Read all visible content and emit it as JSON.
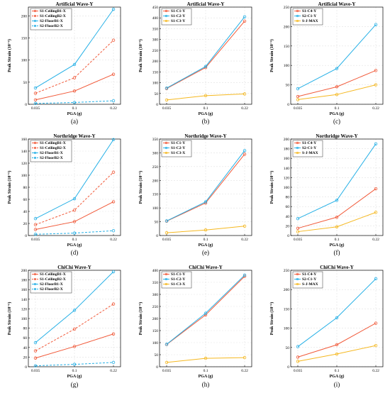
{
  "colors": {
    "s1": "#f15a3a",
    "s2": "#26b0e6",
    "s3": "#f5b820",
    "grid": "#e2e2e2",
    "axis": "#000000"
  },
  "chart_data": [
    {
      "type": "line",
      "caption": "(a)",
      "title": "Artificial Wave-Y",
      "xlabel": "PGA (g)",
      "ylabel": "Peak Strain (10⁻⁶)",
      "categories": [
        "0.035",
        "0.1",
        "0.22"
      ],
      "ylim": [
        0,
        220
      ],
      "yticks": [
        0,
        50,
        100,
        150,
        200
      ],
      "legend_position": "top-left",
      "grid": true,
      "series": [
        {
          "name": "S1-CeilingB1-X",
          "color": "s1",
          "dash": false,
          "values": [
            10,
            30,
            68
          ]
        },
        {
          "name": "S1-CeilingB2-X",
          "color": "s1",
          "dash": true,
          "values": [
            25,
            60,
            145
          ]
        },
        {
          "name": "S2-FloorB1-X",
          "color": "s2",
          "dash": false,
          "values": [
            37,
            90,
            215
          ]
        },
        {
          "name": "S2-FloorB2-X",
          "color": "s2",
          "dash": true,
          "values": [
            2,
            4,
            8
          ]
        }
      ]
    },
    {
      "type": "line",
      "caption": "(b)",
      "title": "Artificial Wave-Y",
      "xlabel": "PGA (g)",
      "ylabel": "Peak Strain (10⁻⁶)",
      "categories": [
        "0.035",
        "0.1",
        "0.22"
      ],
      "ylim": [
        0,
        450
      ],
      "yticks": [
        0,
        50,
        100,
        150,
        200,
        250,
        300,
        350,
        400,
        450
      ],
      "legend_position": "top-left",
      "grid": true,
      "series": [
        {
          "name": "S1-C1-Y",
          "color": "s1",
          "dash": false,
          "values": [
            73,
            170,
            385
          ]
        },
        {
          "name": "S1-C2-Y",
          "color": "s2",
          "dash": false,
          "values": [
            75,
            175,
            405
          ]
        },
        {
          "name": "S1-C3-Y",
          "color": "s3",
          "dash": false,
          "values": [
            20,
            40,
            48
          ]
        }
      ]
    },
    {
      "type": "line",
      "caption": "(c)",
      "title": "Artificial Wave-Y",
      "xlabel": "PGA (g)",
      "ylabel": "Peak Strain (10⁻⁶)",
      "categories": [
        "0.035",
        "0.1",
        "0.22"
      ],
      "ylim": [
        0,
        250
      ],
      "yticks": [
        0,
        50,
        100,
        150,
        200,
        250
      ],
      "legend_position": "top-left",
      "grid": true,
      "series": [
        {
          "name": "S1-C4-Y",
          "color": "s1",
          "dash": false,
          "values": [
            20,
            45,
            87
          ]
        },
        {
          "name": "S2-C1-Y",
          "color": "s2",
          "dash": false,
          "values": [
            40,
            92,
            205
          ]
        },
        {
          "name": "S-J-MAX",
          "color": "s3",
          "dash": false,
          "values": [
            12,
            25,
            50
          ]
        }
      ]
    },
    {
      "type": "line",
      "caption": "(d)",
      "title": "Northridge Wave-Y",
      "xlabel": "PGA (g)",
      "ylabel": "Peak Strain (10⁻⁶)",
      "categories": [
        "0.035",
        "0.1",
        "0.22"
      ],
      "ylim": [
        0,
        160
      ],
      "yticks": [
        0,
        20,
        40,
        60,
        80,
        100,
        120,
        140,
        160
      ],
      "legend_position": "top-left",
      "grid": true,
      "series": [
        {
          "name": "S1-CeilingB1-X",
          "color": "s1",
          "dash": false,
          "values": [
            10,
            23,
            56
          ]
        },
        {
          "name": "S1-CeilingB2-X",
          "color": "s1",
          "dash": true,
          "values": [
            18,
            42,
            105
          ]
        },
        {
          "name": "S2-FloorB1-X",
          "color": "s2",
          "dash": false,
          "values": [
            28,
            61,
            159
          ]
        },
        {
          "name": "S2-FloorB2-X",
          "color": "s2",
          "dash": true,
          "values": [
            2,
            4,
            8
          ]
        }
      ]
    },
    {
      "type": "line",
      "caption": "(e)",
      "title": "Northridge Wave-Y",
      "xlabel": "PGA (g)",
      "ylabel": "Peak Strain (10⁻⁶)",
      "categories": [
        "0.035",
        "0.1",
        "0.22"
      ],
      "ylim": [
        0,
        350
      ],
      "yticks": [
        0,
        50,
        100,
        150,
        200,
        250,
        300,
        350
      ],
      "legend_position": "top-left",
      "grid": true,
      "series": [
        {
          "name": "S1-C1-Y",
          "color": "s1",
          "dash": false,
          "values": [
            52,
            118,
            295
          ]
        },
        {
          "name": "S1-C2-Y",
          "color": "s2",
          "dash": false,
          "values": [
            53,
            122,
            308
          ]
        },
        {
          "name": "S1-C3-X",
          "color": "s3",
          "dash": false,
          "values": [
            10,
            20,
            34
          ]
        }
      ]
    },
    {
      "type": "line",
      "caption": "(f)",
      "title": "Northridge Wave-Y",
      "xlabel": "PGA (g)",
      "ylabel": "Peak Strain (10⁻⁶)",
      "categories": [
        "0.035",
        "0.1",
        "0.22"
      ],
      "ylim": [
        0,
        200
      ],
      "yticks": [
        0,
        20,
        40,
        60,
        80,
        100,
        120,
        140,
        160,
        180,
        200
      ],
      "legend_position": "top-left",
      "grid": true,
      "series": [
        {
          "name": "S1-C4-Y",
          "color": "s1",
          "dash": false,
          "values": [
            15,
            38,
            97
          ]
        },
        {
          "name": "S2-C1-Y",
          "color": "s2",
          "dash": false,
          "values": [
            35,
            73,
            190
          ]
        },
        {
          "name": "S-J-MAX",
          "color": "s3",
          "dash": false,
          "values": [
            8,
            18,
            48
          ]
        }
      ]
    },
    {
      "type": "line",
      "caption": "(g)",
      "title": "ChiChi Wave-Y",
      "xlabel": "PGA (g)",
      "ylabel": "Peak Strain (10⁻⁶)",
      "categories": [
        "0.035",
        "0.1",
        "0.22"
      ],
      "ylim": [
        0,
        200
      ],
      "yticks": [
        0,
        20,
        40,
        60,
        80,
        100,
        120,
        140,
        160,
        180,
        200
      ],
      "legend_position": "top-left",
      "grid": true,
      "series": [
        {
          "name": "S1-CeilingB1-X",
          "color": "s1",
          "dash": false,
          "values": [
            18,
            42,
            68
          ]
        },
        {
          "name": "S1-CeilingB2-X",
          "color": "s1",
          "dash": true,
          "values": [
            33,
            78,
            130
          ]
        },
        {
          "name": "S2-FloorB1-X",
          "color": "s2",
          "dash": false,
          "values": [
            50,
            117,
            197
          ]
        },
        {
          "name": "S2-FloorB2-X",
          "color": "s2",
          "dash": true,
          "values": [
            2,
            5,
            9
          ]
        }
      ]
    },
    {
      "type": "line",
      "caption": "(h)",
      "title": "ChiChi Wave-Y",
      "xlabel": "PGA (g)",
      "ylabel": "Peak Strain (10⁻⁶)",
      "categories": [
        "0.035",
        "0.1",
        "0.22"
      ],
      "ylim": [
        0,
        400
      ],
      "yticks": [
        0,
        50,
        100,
        150,
        200,
        250,
        300,
        350,
        400
      ],
      "legend_position": "top-left",
      "grid": true,
      "series": [
        {
          "name": "S1-C1-Y",
          "color": "s1",
          "dash": false,
          "values": [
            92,
            215,
            375
          ]
        },
        {
          "name": "S1-C2-Y",
          "color": "s2",
          "dash": false,
          "values": [
            93,
            222,
            380
          ]
        },
        {
          "name": "S1-C3-X",
          "color": "s3",
          "dash": false,
          "values": [
            18,
            35,
            38
          ]
        }
      ]
    },
    {
      "type": "line",
      "caption": "(i)",
      "title": "ChiChi Wave-Y",
      "xlabel": "PGA (g)",
      "ylabel": "Peak Strain (10⁻⁶)",
      "categories": [
        "0.035",
        "0.1",
        "0.22"
      ],
      "ylim": [
        0,
        250
      ],
      "yticks": [
        0,
        50,
        100,
        150,
        200,
        250
      ],
      "legend_position": "top-left",
      "grid": true,
      "series": [
        {
          "name": "S1-C4-Y",
          "color": "s1",
          "dash": false,
          "values": [
            25,
            57,
            113
          ]
        },
        {
          "name": "S2-C1-Y",
          "color": "s2",
          "dash": false,
          "values": [
            52,
            127,
            228
          ]
        },
        {
          "name": "S-J-MAX",
          "color": "s3",
          "dash": false,
          "values": [
            14,
            33,
            55
          ]
        }
      ]
    }
  ]
}
